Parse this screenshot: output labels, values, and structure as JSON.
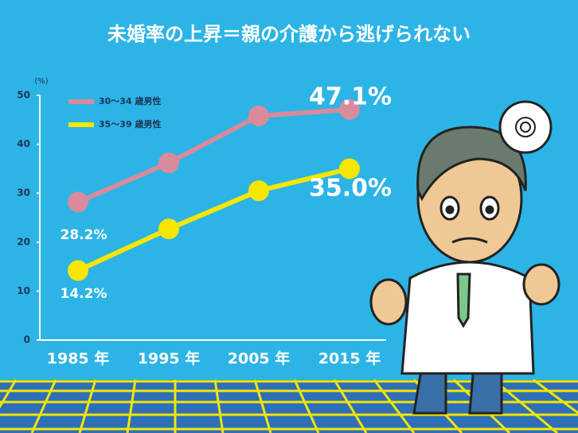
{
  "chart_data": {
    "type": "line",
    "title": "未婚率の上昇＝親の介護から逃げられない",
    "y_axis_label": "(%)",
    "categories": [
      "1985 年",
      "1995 年",
      "2005 年",
      "2015 年"
    ],
    "series": [
      {
        "name": "30～34 歳男性",
        "color": "#d98a9b",
        "values": [
          28.2,
          36.2,
          45.8,
          47.1
        ],
        "value_labels": [
          "28.2%",
          null,
          null,
          "47.1%"
        ]
      },
      {
        "name": "35～39 歳男性",
        "color": "#f7e600",
        "values": [
          14.2,
          22.7,
          30.5,
          35.0
        ],
        "value_labels": [
          "14.2%",
          null,
          null,
          "35.0%"
        ]
      }
    ],
    "ylim": [
      0,
      50
    ],
    "yticks": [
      0,
      10,
      20,
      30,
      40,
      50
    ],
    "grid": false,
    "legend": "top-left"
  }
}
